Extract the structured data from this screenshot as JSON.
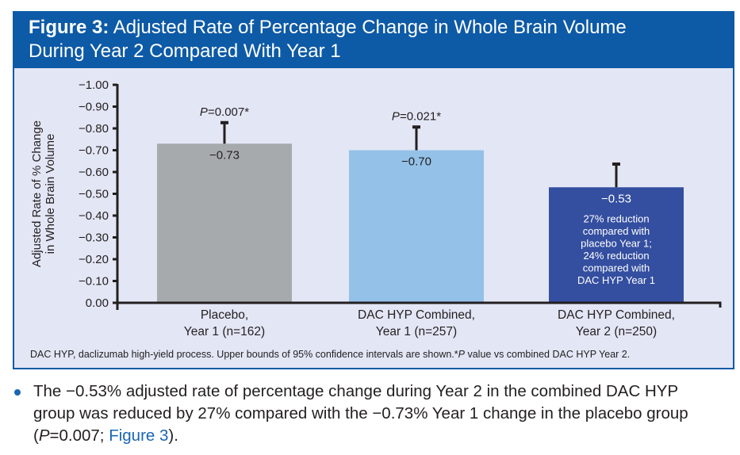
{
  "figure": {
    "label": "Figure 3:",
    "title_line1": "Adjusted Rate of Percentage Change in Whole Brain Volume",
    "title_line2": "During Year 2 Compared With Year 1",
    "footnote_main": "DAC HYP, daclizumab high-yield process. Upper bounds of 95% confidence intervals are shown.*",
    "footnote_p": "P",
    "footnote_tail": " value vs combined DAC HYP Year 2."
  },
  "colors": {
    "header_blue": "#0d5aa7",
    "panel_bg": "#e3e6f5",
    "placebo_bar": "#a7aaad",
    "dac_y1_bar": "#94c1e8",
    "dac_y2_bar": "#344ea0",
    "axis": "#231f20",
    "link": "#1a66b3"
  },
  "chart_data": {
    "type": "bar",
    "title": "Adjusted Rate of Percentage Change in Whole Brain Volume During Year 2 Compared With Year 1",
    "ylabel_line1": "Adjusted Rate of % Change",
    "ylabel_line2": "in Whole Brain Volume",
    "xlabel": "",
    "ylim": [
      0,
      -1.0
    ],
    "y_ticks": [
      "0.00",
      "−0.10",
      "−0.20",
      "−0.30",
      "−0.40",
      "−0.50",
      "−0.60",
      "−0.70",
      "−0.80",
      "−0.90",
      "−1.00"
    ],
    "y_tick_values": [
      0,
      -0.1,
      -0.2,
      -0.3,
      -0.4,
      -0.5,
      -0.6,
      -0.7,
      -0.8,
      -0.9,
      -1.0
    ],
    "grid": false,
    "categories": [
      {
        "line1": "Placebo,",
        "line2": "Year 1 (n=162)"
      },
      {
        "line1": "DAC HYP Combined,",
        "line2": "Year 1 (n=257)"
      },
      {
        "line1": "DAC HYP Combined,",
        "line2": "Year 2 (n=250)"
      }
    ],
    "values": [
      -0.73,
      -0.7,
      -0.53
    ],
    "value_labels": [
      "−0.73",
      "−0.70",
      "−0.53"
    ],
    "ci_upper": [
      -0.83,
      -0.81,
      -0.64
    ],
    "p_labels": [
      {
        "p": "P",
        "rest": "=0.007*"
      },
      {
        "p": "P",
        "rest": "=0.021*"
      },
      null
    ],
    "annotation_lines": [
      "27% reduction",
      "compared with",
      "placebo Year 1;",
      "24% reduction",
      "compared with",
      "DAC HYP Year 1"
    ]
  },
  "body_text": {
    "part1": "The −0.53% adjusted rate of percentage change during Year 2 in the combined DAC HYP group was reduced by 27% compared with the −0.73% Year 1 change in the placebo group (",
    "p": "P",
    "part2": "=0.007; ",
    "link": "Figure 3",
    "part3": ")."
  }
}
